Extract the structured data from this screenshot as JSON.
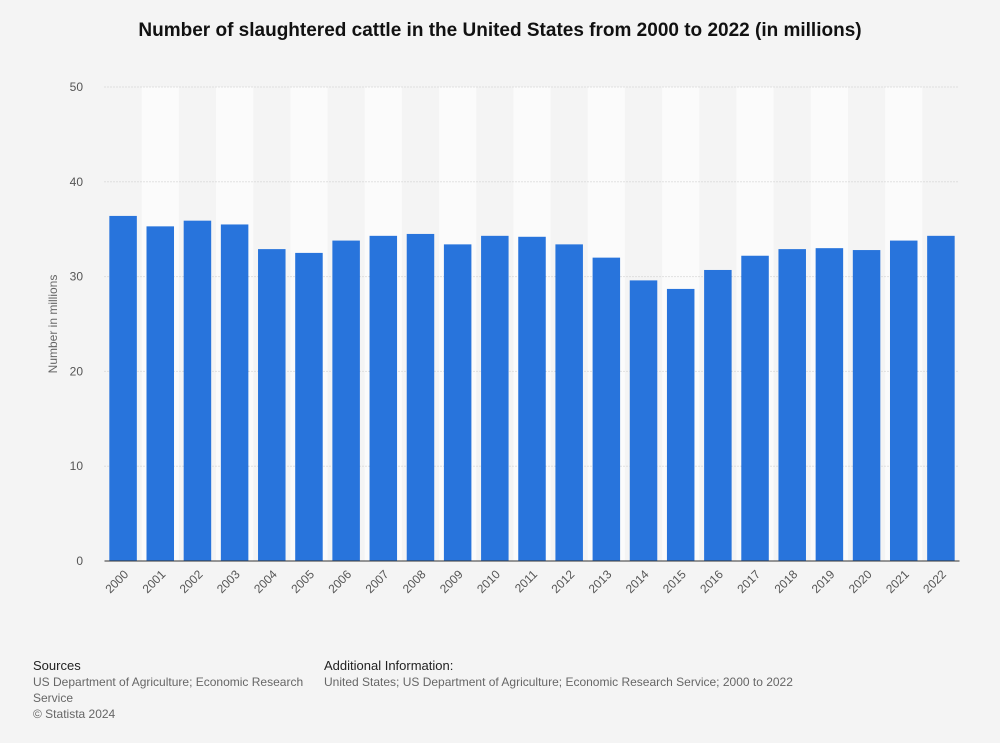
{
  "chart_data": {
    "type": "bar",
    "title": "Number of slaughtered cattle in the United States from 2000 to 2022 (in millions)",
    "y_label": "Number in millions",
    "categories": [
      "2000",
      "2001",
      "2002",
      "2003",
      "2004",
      "2005",
      "2006",
      "2007",
      "2008",
      "2009",
      "2010",
      "2011",
      "2012",
      "2013",
      "2014",
      "2015",
      "2016",
      "2017",
      "2018",
      "2019",
      "2020",
      "2021",
      "2022"
    ],
    "values": [
      36.4,
      35.3,
      35.9,
      35.5,
      32.9,
      32.5,
      33.8,
      34.3,
      34.5,
      33.4,
      34.3,
      34.2,
      33.4,
      32.0,
      29.6,
      28.7,
      30.7,
      32.2,
      32.9,
      33.0,
      32.8,
      33.8,
      34.3
    ],
    "color": "#2874dc",
    "ylim": [
      0,
      50
    ],
    "yticks": [
      0,
      10,
      20,
      30,
      40,
      50
    ],
    "grid": true
  },
  "footer": {
    "sources_title": "Sources",
    "sources": "US Department of Agriculture; Economic Research Service",
    "copyright": "© Statista 2024",
    "info_title": "Additional Information:",
    "info": "United States; US Department of Agriculture; Economic Research Service; 2000 to 2022"
  }
}
